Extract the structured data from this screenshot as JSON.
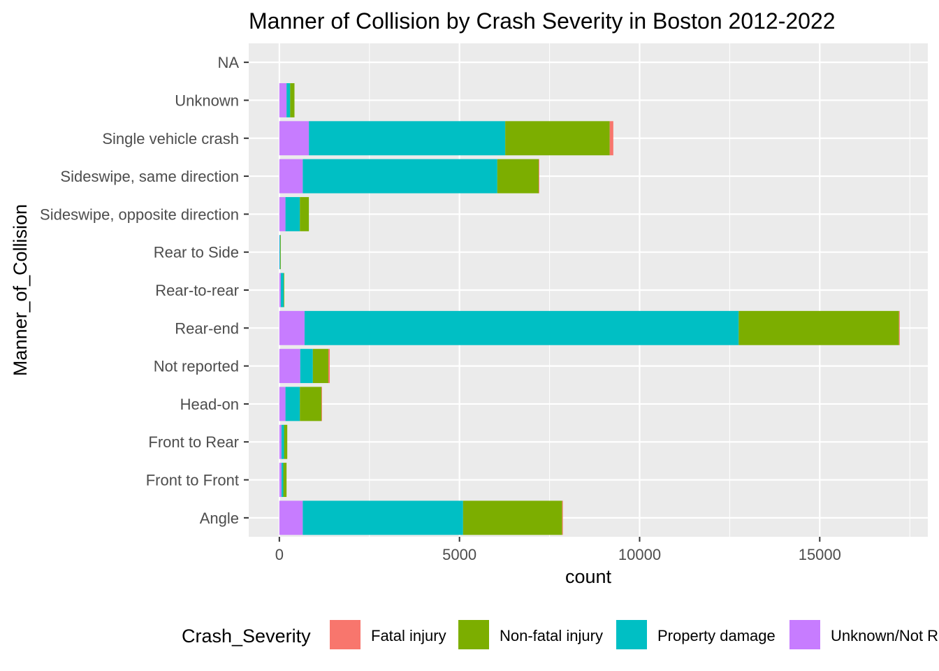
{
  "chart_data": {
    "type": "bar",
    "orientation": "horizontal",
    "stacked": true,
    "title": "Manner of Collision by Crash Severity in Boston 2012-2022",
    "xlabel": "count",
    "ylabel": "Manner_of_Collision",
    "xlim": [
      -850,
      18000
    ],
    "xticks": [
      0,
      5000,
      10000,
      15000
    ],
    "xtick_labels": [
      "0",
      "5000",
      "10000",
      "15000"
    ],
    "grid": true,
    "legend_position": "bottom",
    "legend_title": "Crash_Severity",
    "categories": [
      "Angle",
      "Front to Front",
      "Front to Rear",
      "Head-on",
      "Not reported",
      "Rear-end",
      "Rear-to-rear",
      "Rear to Side",
      "Sideswipe, opposite direction",
      "Sideswipe, same direction",
      "Single vehicle crash",
      "Unknown",
      "NA"
    ],
    "series": [
      {
        "name": "Unknown/Not R",
        "color": "#C77CFF",
        "values": [
          650,
          60,
          60,
          170,
          580,
          700,
          40,
          5,
          170,
          650,
          820,
          200,
          0
        ]
      },
      {
        "name": "Property damage",
        "color": "#00BFC4",
        "values": [
          4450,
          50,
          70,
          400,
          350,
          12050,
          80,
          20,
          400,
          5400,
          5450,
          100,
          0
        ]
      },
      {
        "name": "Non-fatal injury",
        "color": "#7CAE00",
        "values": [
          2750,
          90,
          90,
          600,
          430,
          4450,
          10,
          3,
          250,
          1150,
          2900,
          120,
          0
        ]
      },
      {
        "name": "Fatal injury",
        "color": "#F8766D",
        "values": [
          20,
          0,
          0,
          10,
          40,
          20,
          0,
          0,
          0,
          10,
          100,
          0,
          0
        ]
      }
    ]
  }
}
